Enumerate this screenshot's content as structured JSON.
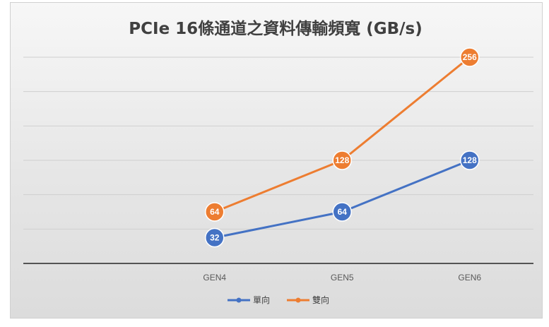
{
  "chart_data": {
    "type": "line",
    "title": "PCIe 16條通道之資料傳輸頻寬 (GB/s)",
    "xlabel": "",
    "ylabel": "",
    "categories": [
      "",
      "GEN4",
      "GEN5",
      "GEN6"
    ],
    "ylim": [
      0,
      256
    ],
    "grid": true,
    "legend_position": "bottom",
    "series": [
      {
        "name": "單向",
        "color": "#4472c4",
        "values": [
          null,
          32,
          64,
          128
        ],
        "labels": [
          "",
          "32",
          "64",
          "128"
        ]
      },
      {
        "name": "雙向",
        "color": "#ed7d31",
        "values": [
          null,
          64,
          128,
          256
        ],
        "labels": [
          "",
          "64",
          "128",
          "256"
        ]
      }
    ]
  }
}
